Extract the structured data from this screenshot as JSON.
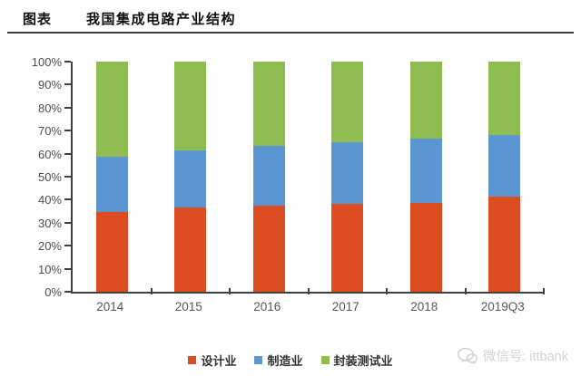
{
  "header": {
    "label": "图表",
    "title": "我国集成电路产业结构"
  },
  "chart_data": {
    "type": "bar",
    "stacked": true,
    "title": "我国集成电路产业结构",
    "categories": [
      "2014",
      "2015",
      "2016",
      "2017",
      "2018",
      "2019Q3"
    ],
    "series": [
      {
        "key": "design",
        "name": "设计业",
        "color": "#DC4E22",
        "values": [
          34.5,
          36.5,
          37.5,
          38.0,
          38.5,
          41.5
        ]
      },
      {
        "key": "manufacturing",
        "name": "制造业",
        "color": "#5B96D2",
        "values": [
          24.0,
          25.0,
          26.0,
          27.0,
          28.0,
          26.5
        ]
      },
      {
        "key": "packaging-testing",
        "name": "封装测试业",
        "color": "#8FBC51",
        "values": [
          41.5,
          38.5,
          36.5,
          35.0,
          33.5,
          32.0
        ]
      }
    ],
    "xlabel": "",
    "ylabel": "",
    "ylim": [
      0,
      100
    ],
    "y_ticks": [
      "0%",
      "10%",
      "20%",
      "30%",
      "40%",
      "50%",
      "60%",
      "70%",
      "80%",
      "90%",
      "100%"
    ],
    "grid": "off",
    "legend_position": "bottom"
  },
  "watermark": {
    "icon": "wechat-icon",
    "text": "微信号: ittbank"
  },
  "colors": {
    "axis": "#3f3f3f",
    "header_rule": "#3b3b3b",
    "watermark": "#d3d3d3"
  }
}
